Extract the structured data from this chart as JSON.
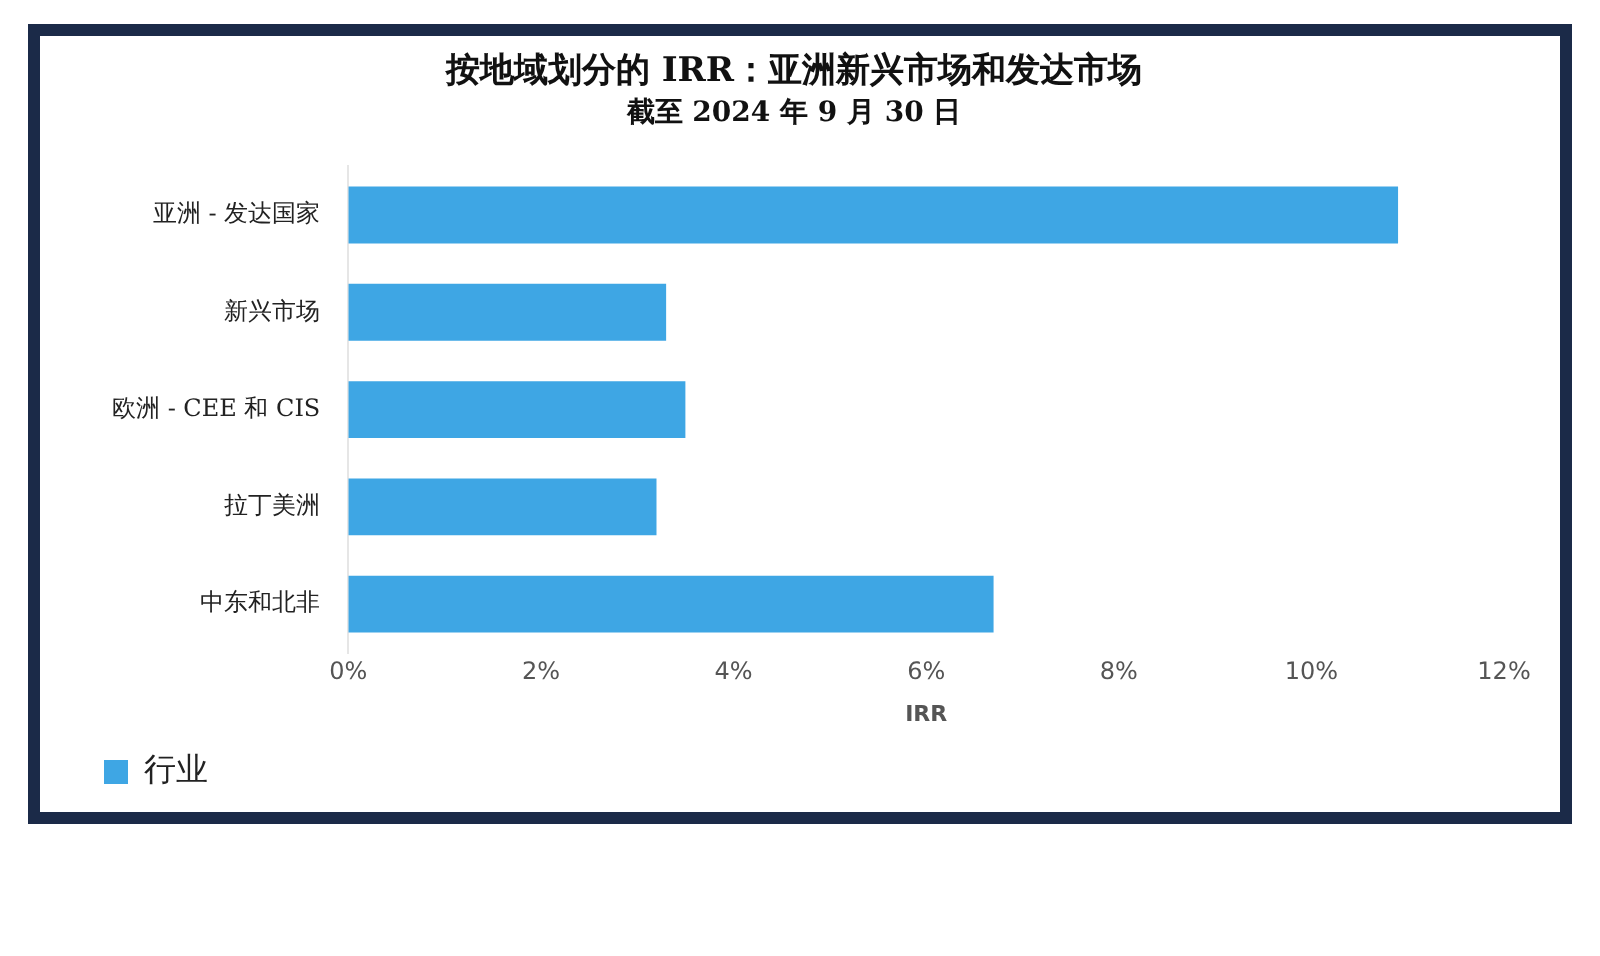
{
  "chart_data": {
    "type": "bar",
    "orientation": "horizontal",
    "title": "按地域划分的 IRR：亚洲新兴市场和发达市场",
    "subtitle": "截至 2024 年 9 月 30 日",
    "xlabel": "IRR",
    "categories": [
      "亚洲 - 发达国家",
      "新兴市场",
      "欧洲 - CEE 和 CIS",
      "拉丁美洲",
      "中东和北非"
    ],
    "series": [
      {
        "name": "行业",
        "color": "#3ea6e4",
        "values": [
          10.9,
          3.3,
          3.5,
          3.2,
          6.7
        ]
      }
    ],
    "xlim": [
      0,
      12
    ],
    "xticks": [
      {
        "value": 0,
        "label": "0%"
      },
      {
        "value": 2,
        "label": "2%"
      },
      {
        "value": 4,
        "label": "4%"
      },
      {
        "value": 6,
        "label": "6%"
      },
      {
        "value": 8,
        "label": "8%"
      },
      {
        "value": 10,
        "label": "10%"
      },
      {
        "value": 12,
        "label": "12%"
      }
    ],
    "grid": false,
    "legend": "bottom left"
  }
}
